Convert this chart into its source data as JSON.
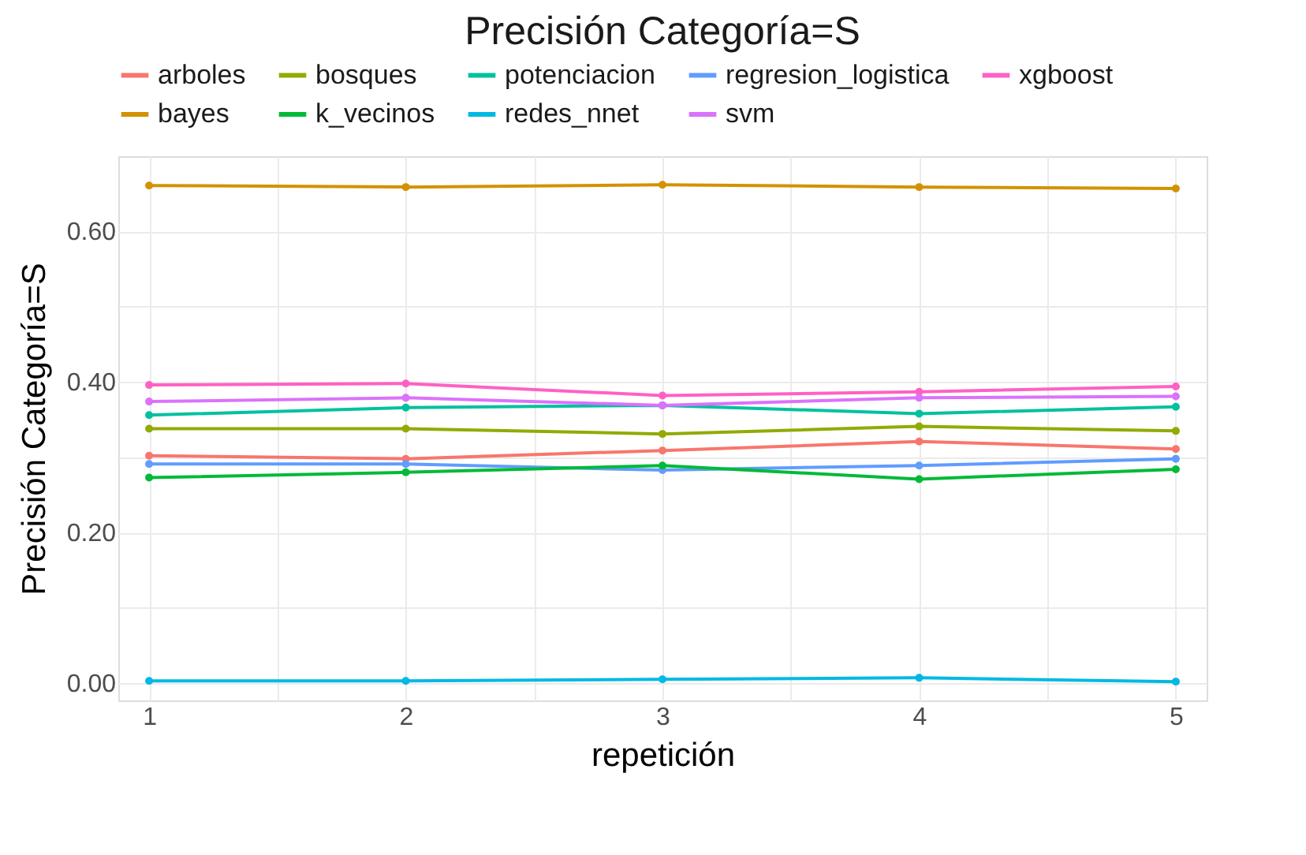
{
  "chart_data": {
    "type": "line",
    "title": "Precisión Categoría=S",
    "xlabel": "repetición",
    "ylabel": "Precisión Categoría=S",
    "x": [
      1,
      2,
      3,
      4,
      5
    ],
    "series": [
      {
        "name": "arboles",
        "color": "#f8766d",
        "values": [
          0.302,
          0.298,
          0.309,
          0.321,
          0.311
        ]
      },
      {
        "name": "bosques",
        "color": "#93aa00",
        "values": [
          0.338,
          0.338,
          0.331,
          0.341,
          0.335
        ]
      },
      {
        "name": "potenciacion",
        "color": "#00c19f",
        "values": [
          0.356,
          0.366,
          0.369,
          0.358,
          0.367
        ]
      },
      {
        "name": "regresion_logistica",
        "color": "#619cff",
        "values": [
          0.291,
          0.291,
          0.283,
          0.289,
          0.298
        ]
      },
      {
        "name": "xgboost",
        "color": "#ff61c3",
        "values": [
          0.396,
          0.398,
          0.382,
          0.387,
          0.394
        ]
      },
      {
        "name": "bayes",
        "color": "#d39200",
        "values": [
          0.661,
          0.659,
          0.662,
          0.659,
          0.657
        ]
      },
      {
        "name": "k_vecinos",
        "color": "#00ba38",
        "values": [
          0.273,
          0.28,
          0.289,
          0.271,
          0.284
        ]
      },
      {
        "name": "redes_nnet",
        "color": "#00b9e3",
        "values": [
          0.003,
          0.003,
          0.005,
          0.007,
          0.002
        ]
      },
      {
        "name": "svm",
        "color": "#db72fb",
        "values": [
          0.374,
          0.379,
          0.369,
          0.379,
          0.381
        ]
      }
    ],
    "xlim": [
      0.88,
      5.12
    ],
    "ylim": [
      -0.023,
      0.7
    ],
    "xticks": [
      1,
      {
        "value": 1.5,
        "label": null
      },
      2,
      {
        "value": 2.5,
        "label": null
      },
      3,
      {
        "value": 3.5,
        "label": null
      },
      4,
      {
        "value": 4.5,
        "label": null
      },
      5
    ],
    "yticks": [
      {
        "value": 0,
        "label": "0.00"
      },
      {
        "value": 0.1,
        "label": null
      },
      {
        "value": 0.2,
        "label": "0.20"
      },
      {
        "value": 0.3,
        "label": null
      },
      {
        "value": 0.4,
        "label": "0.40"
      },
      {
        "value": 0.5,
        "label": null
      },
      {
        "value": 0.6,
        "label": "0.60"
      }
    ],
    "grid": true,
    "legend": "top",
    "marker": "circle",
    "line_style": "solid"
  }
}
